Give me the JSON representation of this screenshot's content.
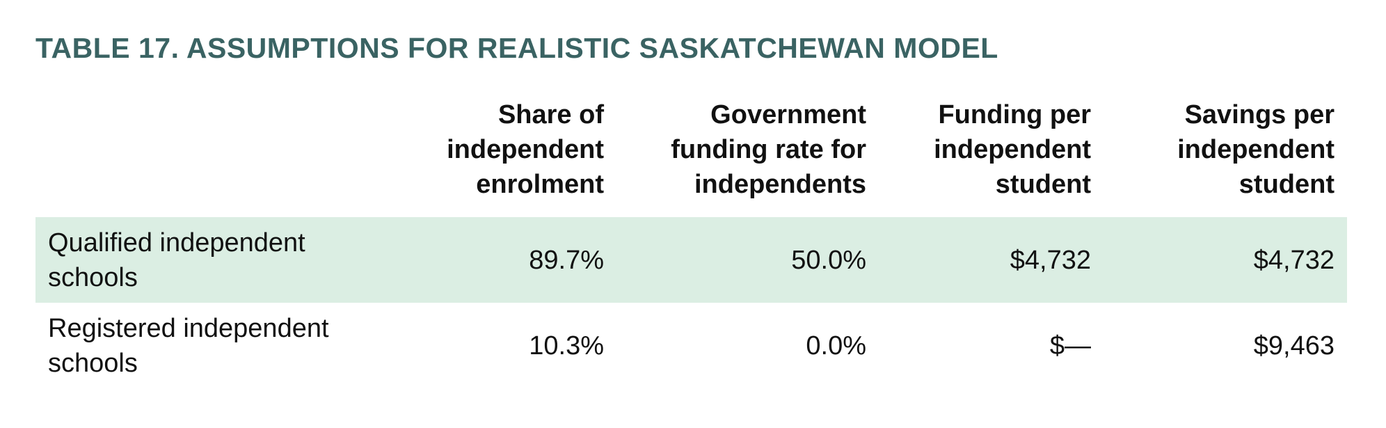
{
  "title": "TABLE 17. ASSUMPTIONS FOR REALISTIC SASKATCHEWAN MODEL",
  "table": {
    "headers": [
      "Share of independent enrolment",
      "Government funding rate for independents",
      "Funding per independent student",
      "Savings per independent student"
    ],
    "rows": [
      [
        "Qualified independent schools",
        "89.7%",
        "50.0%",
        "$4,732",
        "$4,732"
      ],
      [
        "Registered independent schools",
        "10.3%",
        "0.0%",
        "$—",
        "$9,463"
      ]
    ]
  }
}
